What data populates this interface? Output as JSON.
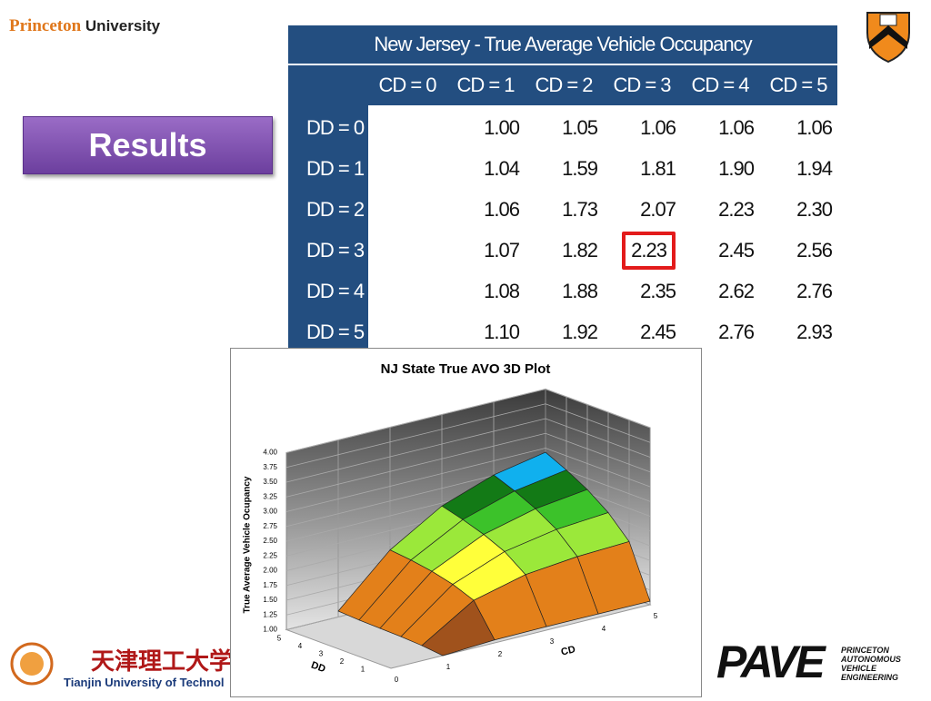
{
  "header": {
    "brand_first": "Princeton",
    "brand_second": "University"
  },
  "section_button": "Results",
  "table": {
    "title": "New Jersey - True Average Vehicle Occupancy",
    "columns": [
      "CD = 0",
      "CD = 1",
      "CD = 2",
      "CD = 3",
      "CD = 4",
      "CD = 5"
    ],
    "rows": [
      {
        "label": "DD = 0",
        "cells": [
          null,
          "1.00",
          "1.05",
          "1.06",
          "1.06",
          "1.06"
        ]
      },
      {
        "label": "DD = 1",
        "cells": [
          null,
          "1.04",
          "1.59",
          "1.81",
          "1.90",
          "1.94"
        ]
      },
      {
        "label": "DD = 2",
        "cells": [
          null,
          "1.06",
          "1.73",
          "2.07",
          "2.23",
          "2.30"
        ]
      },
      {
        "label": "DD = 3",
        "cells": [
          null,
          "1.07",
          "1.82",
          "2.23",
          "2.45",
          "2.56"
        ]
      },
      {
        "label": "DD = 4",
        "cells": [
          null,
          "1.08",
          "1.88",
          "2.35",
          "2.62",
          "2.76"
        ]
      },
      {
        "label": "DD = 5",
        "cells": [
          null,
          "1.10",
          "1.92",
          "2.45",
          "2.76",
          "2.93"
        ]
      }
    ],
    "highlighted_cell": [
      3,
      3
    ]
  },
  "chart": {
    "type": "surface",
    "title": "NJ State True AVO 3D Plot",
    "y_label": "True Average Vehicle Ocupancy",
    "x_label": "CD",
    "z_label": "DD",
    "ylim": [
      1,
      4
    ],
    "yticks": [
      {
        "value": 1,
        "label": "1.00"
      },
      {
        "value": 1.25,
        "label": "1.25"
      },
      {
        "value": 1.5,
        "label": "1.50"
      },
      {
        "value": 1.75,
        "label": "1.75"
      },
      {
        "value": 2,
        "label": "2.00"
      },
      {
        "value": 2.25,
        "label": "2.25"
      },
      {
        "value": 2.5,
        "label": "2.50"
      },
      {
        "value": 2.75,
        "label": "2.75"
      },
      {
        "value": 3,
        "label": "3.00"
      },
      {
        "value": 3.25,
        "label": "3.25"
      },
      {
        "value": 3.5,
        "label": "3.50"
      },
      {
        "value": 3.75,
        "label": "3.75"
      },
      {
        "value": 4,
        "label": "4.00"
      }
    ],
    "xticks": [
      0,
      1,
      2,
      3,
      4,
      5
    ],
    "zticks": [
      1,
      2,
      3,
      4,
      5
    ],
    "band_colors": [
      "#a0521c",
      "#e3801a",
      "#f2c232",
      "#ffff3a",
      "#9be83a",
      "#3cc22a",
      "#137a16",
      "#10b0ee",
      "#1f3a6a",
      "#7a30b0"
    ]
  },
  "footer": {
    "left_cn": "天津理工大学",
    "left_en": "Tianjin University of Technol",
    "right_logo": "PAVE",
    "right_lines": [
      "PRINCETON",
      "AUTONOMOUS",
      "VEHICLE",
      "ENGINEERING"
    ]
  }
}
